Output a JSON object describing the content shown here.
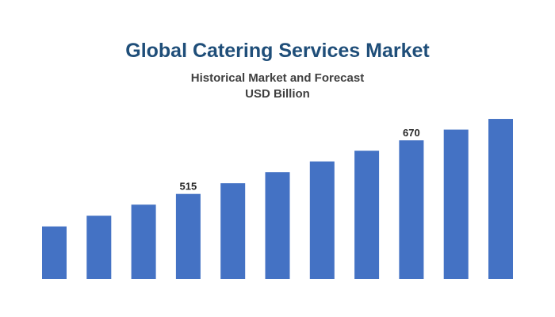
{
  "chart_data": {
    "type": "bar",
    "title": "Global Catering Services Market",
    "subtitle": "Historical Market and Forecast",
    "unit": "USD Billion",
    "values": [
      421,
      452,
      484,
      515,
      546,
      578,
      609,
      640,
      670,
      701,
      732
    ],
    "data_labels": [
      "",
      "",
      "",
      "515",
      "",
      "",
      "",
      "",
      "670",
      "",
      ""
    ],
    "ylim": [
      269,
      755
    ],
    "grid": false,
    "bar_color": "#4472c4",
    "title_color": "#1f4e79"
  }
}
